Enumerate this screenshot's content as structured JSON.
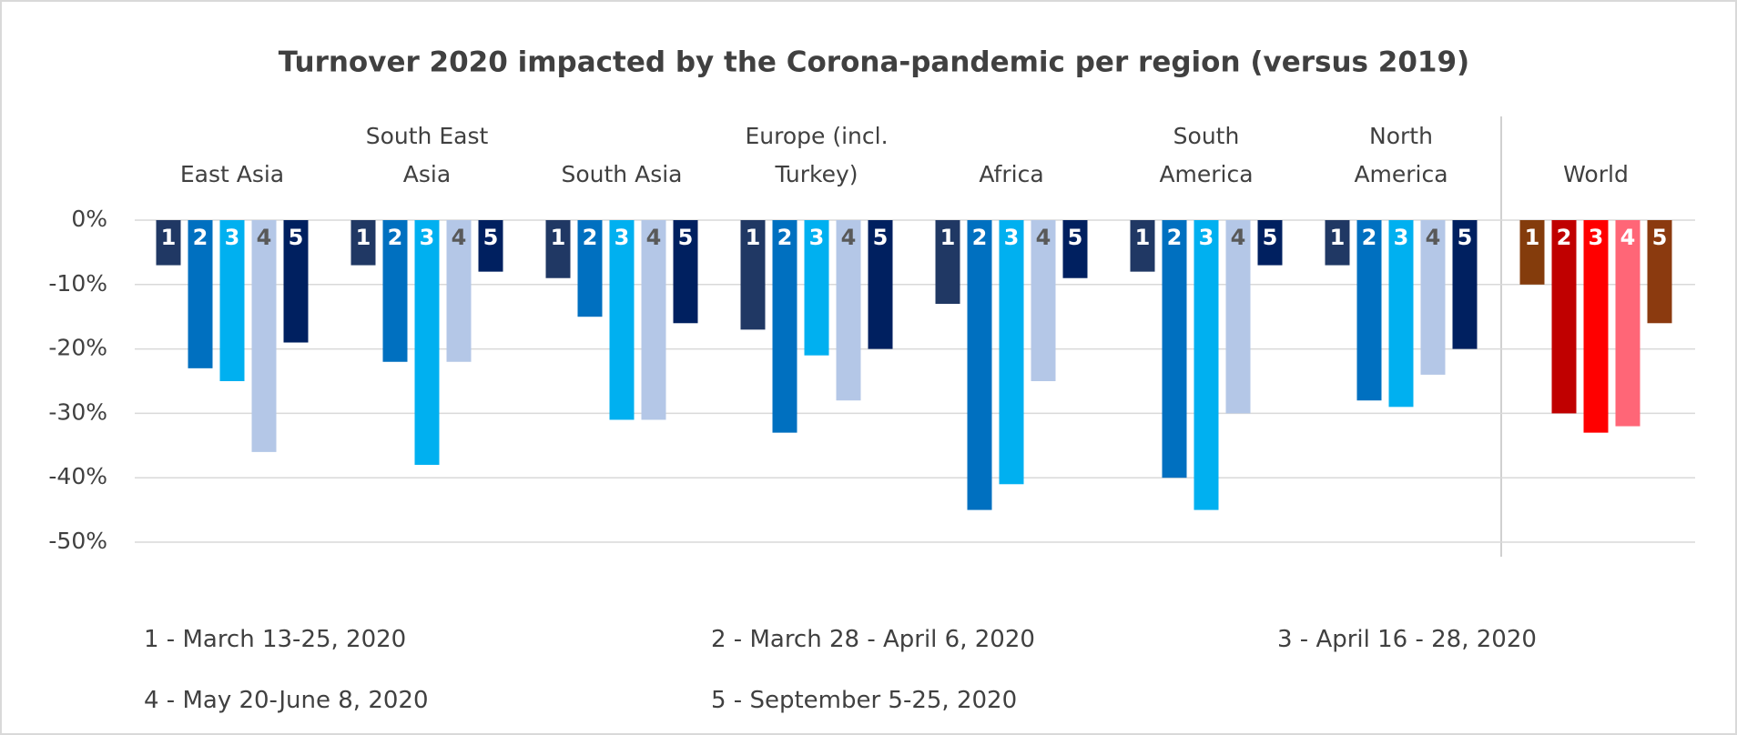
{
  "chart_data": {
    "type": "bar",
    "title": "Turnover 2020 impacted by the Corona-pandemic per region (versus 2019)",
    "categories": [
      "East Asia",
      "South East\nAsia",
      "South Asia",
      "Europe (incl.\nTurkey)",
      "Africa",
      "South\nAmerica",
      "North\nAmerica",
      "World"
    ],
    "series": [
      {
        "name": "1 - March 13-25, 2020",
        "label": "1",
        "color": "#203864",
        "last_color": "#843c0c",
        "values": [
          -7,
          -7,
          -9,
          -17,
          -13,
          -8,
          -7,
          -10
        ]
      },
      {
        "name": "2 - March 28 - April 6, 2020",
        "label": "2",
        "color": "#0070c0",
        "last_color": "#c00000",
        "values": [
          -23,
          -22,
          -15,
          -33,
          -45,
          -40,
          -28,
          -30
        ]
      },
      {
        "name": "3 - April 16 - 28, 2020",
        "label": "3",
        "color": "#00b0f0",
        "last_color": "#ff0000",
        "values": [
          -25,
          -38,
          -31,
          -21,
          -41,
          -45,
          -29,
          -33
        ]
      },
      {
        "name": "4 - May 20-June 8, 2020",
        "label": "4",
        "color": "#b4c7e7",
        "last_color": "#ff6677",
        "values": [
          -36,
          -22,
          -31,
          -28,
          -25,
          -30,
          -24,
          -32
        ]
      },
      {
        "name": "5 - September 5-25, 2020",
        "label": "5",
        "color": "#002060",
        "last_color": "#8b3a0f",
        "values": [
          -19,
          -8,
          -16,
          -20,
          -9,
          -7,
          -20,
          -16
        ]
      }
    ],
    "ylim": [
      -50,
      0
    ],
    "yticks": [
      {
        "value": 0,
        "label": "0%"
      },
      {
        "value": -10,
        "label": "-10%"
      },
      {
        "value": -20,
        "label": "-20%"
      },
      {
        "value": -30,
        "label": "-30%"
      },
      {
        "value": -40,
        "label": "-40%"
      },
      {
        "value": -50,
        "label": "-50%"
      }
    ],
    "grid": true
  }
}
